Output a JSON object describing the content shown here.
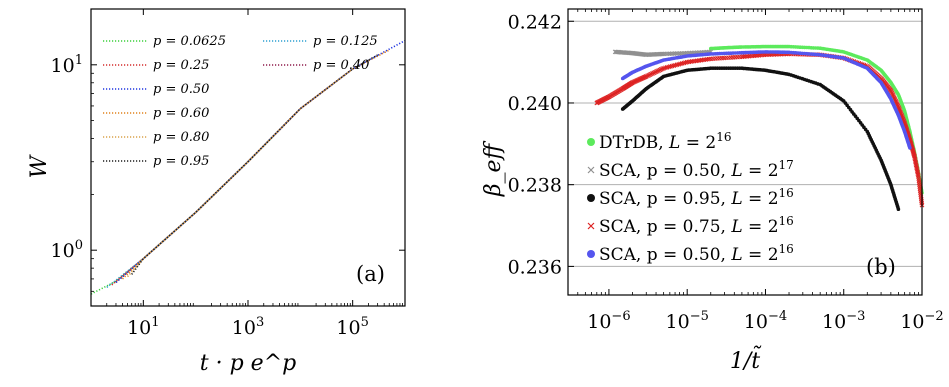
{
  "chart_data": [
    {
      "type": "line",
      "panel_label": "(a)",
      "xlabel": "t · p e^p",
      "ylabel": "W",
      "x_scale": "log",
      "y_scale": "log",
      "xlim": [
        1,
        1000000
      ],
      "ylim": [
        0.5,
        20
      ],
      "x_ticks": [
        {
          "value": 10,
          "base": "10",
          "exp": "1"
        },
        {
          "value": 1000,
          "base": "10",
          "exp": "3"
        },
        {
          "value": 100000,
          "base": "10",
          "exp": "5"
        }
      ],
      "y_ticks": [
        {
          "value": 1,
          "base": "10",
          "exp": "0"
        },
        {
          "value": 10,
          "base": "10",
          "exp": "1"
        }
      ],
      "grid": false,
      "legend_position": "top-left",
      "line_style": "dotted",
      "series": [
        {
          "name": "p = 0.0625",
          "color": "#3ccf3c",
          "x": [
            1,
            3,
            10,
            100,
            1000,
            3000
          ],
          "y": [
            0.58,
            0.68,
            0.9,
            1.6,
            3.0,
            4.1
          ]
        },
        {
          "name": "p = 0.125",
          "color": "#2c9fd0",
          "x": [
            2,
            10,
            100,
            1000,
            10000
          ],
          "y": [
            0.63,
            0.9,
            1.6,
            3.0,
            5.8
          ]
        },
        {
          "name": "p = 0.25",
          "color": "#d42b2b",
          "x": [
            2.5,
            10,
            100,
            1000,
            10000,
            40000
          ],
          "y": [
            0.65,
            0.9,
            1.6,
            3.0,
            5.8,
            7.8
          ]
        },
        {
          "name": "p = 0.40",
          "color": "#8e1a4a",
          "x": [
            3,
            10,
            100,
            1000,
            10000,
            100000
          ],
          "y": [
            0.67,
            0.9,
            1.6,
            3.0,
            5.8,
            9.5
          ]
        },
        {
          "name": "p = 0.50",
          "color": "#1f35e0",
          "x": [
            3,
            10,
            100,
            1000,
            10000,
            100000,
            1000000
          ],
          "y": [
            0.67,
            0.9,
            1.6,
            3.0,
            5.8,
            9.5,
            13.5
          ]
        },
        {
          "name": "p = 0.60",
          "color": "#e0821c",
          "x": [
            4,
            10,
            100,
            1000,
            10000,
            100000,
            500000
          ],
          "y": [
            0.7,
            0.9,
            1.6,
            3.0,
            5.8,
            9.5,
            12.0
          ]
        },
        {
          "name": "p = 0.80",
          "color": "#d9a24a",
          "x": [
            5,
            10,
            100,
            1000,
            10000,
            100000
          ],
          "y": [
            0.72,
            0.9,
            1.6,
            3.0,
            5.8,
            9.5
          ]
        },
        {
          "name": "p = 0.95",
          "color": "#1a1a1a",
          "x": [
            6,
            10,
            100,
            1000,
            10000,
            100000,
            300000
          ],
          "y": [
            0.74,
            0.9,
            1.6,
            3.0,
            5.8,
            9.5,
            11.3
          ]
        }
      ]
    },
    {
      "type": "scatter",
      "panel_label": "(b)",
      "xlabel": "1/t̃",
      "ylabel": "β_eff",
      "x_scale": "log",
      "y_scale": "linear",
      "xlim": [
        3e-07,
        0.01
      ],
      "ylim": [
        0.2353,
        0.2423
      ],
      "x_ticks": [
        {
          "value": 1e-06,
          "base": "10",
          "exp": "−6"
        },
        {
          "value": 1e-05,
          "base": "10",
          "exp": "−5"
        },
        {
          "value": 0.0001,
          "base": "10",
          "exp": "−4"
        },
        {
          "value": 0.001,
          "base": "10",
          "exp": "−3"
        },
        {
          "value": 0.01,
          "base": "10",
          "exp": "−2"
        }
      ],
      "y_ticks": [
        {
          "value": 0.236,
          "label": "0.236"
        },
        {
          "value": 0.238,
          "label": "0.238"
        },
        {
          "value": 0.24,
          "label": "0.240"
        },
        {
          "value": 0.242,
          "label": "0.242"
        }
      ],
      "grid": "horizontal",
      "legend_position": "bottom-left",
      "series": [
        {
          "name": "DTrDB, L = 2^16",
          "name_base": "DTrDB, ",
          "name_var": "L",
          "name_exp": "16",
          "marker": "circle",
          "color": "#5cea5c",
          "x": [
            2e-05,
            3e-05,
            5e-05,
            0.0001,
            0.0002,
            0.0005,
            0.001,
            0.002,
            0.003,
            0.004,
            0.005,
            0.006,
            0.007,
            0.008,
            0.009,
            0.01
          ],
          "y": [
            0.24133,
            0.24135,
            0.24137,
            0.24138,
            0.24138,
            0.24134,
            0.24125,
            0.24105,
            0.2408,
            0.2405,
            0.2402,
            0.2398,
            0.2393,
            0.2388,
            0.2383,
            0.2378
          ]
        },
        {
          "name": "SCA, p = 0.50, L = 2^17",
          "name_base": "SCA, p = 0.50, ",
          "name_var": "L",
          "name_exp": "17",
          "marker": "cross",
          "color": "#909090",
          "x": [
            1.2e-06,
            2e-06,
            3e-06,
            5e-06,
            1e-05,
            2e-05
          ],
          "y": [
            0.24125,
            0.24122,
            0.24118,
            0.2412,
            0.24122,
            0.24125
          ]
        },
        {
          "name": "SCA, p = 0.95, L = 2^16",
          "name_base": "SCA, p = 0.95, ",
          "name_var": "L",
          "name_exp": "16",
          "marker": "circle",
          "color": "#111111",
          "x": [
            1.5e-06,
            2e-06,
            3e-06,
            5e-06,
            1e-05,
            2e-05,
            5e-05,
            0.0001,
            0.0002,
            0.0005,
            0.001,
            0.002,
            0.003,
            0.004,
            0.005
          ],
          "y": [
            0.23985,
            0.24005,
            0.24035,
            0.24065,
            0.2408,
            0.24085,
            0.24085,
            0.2408,
            0.2407,
            0.24045,
            0.24005,
            0.2393,
            0.2386,
            0.238,
            0.2374
          ]
        },
        {
          "name": "SCA, p = 0.75, L = 2^16",
          "name_base": "SCA, p = 0.75, ",
          "name_var": "L",
          "name_exp": "16",
          "marker": "cross",
          "color": "#dd2222",
          "x": [
            7e-07,
            1e-06,
            1.5e-06,
            2e-06,
            3e-06,
            5e-06,
            1e-05,
            2e-05,
            5e-05,
            0.0001,
            0.0002,
            0.0005,
            0.001,
            0.002,
            0.003,
            0.004,
            0.005,
            0.006,
            0.007,
            0.008,
            0.009,
            0.01
          ],
          "y": [
            0.24,
            0.24015,
            0.24035,
            0.2405,
            0.24065,
            0.24085,
            0.241,
            0.24108,
            0.24113,
            0.24118,
            0.2412,
            0.24118,
            0.2411,
            0.2409,
            0.2406,
            0.2403,
            0.2399,
            0.2395,
            0.2391,
            0.2387,
            0.2382,
            0.2375
          ]
        },
        {
          "name": "SCA, p = 0.50, L = 2^16",
          "name_base": "SCA, p = 0.50, ",
          "name_var": "L",
          "name_exp": "16",
          "marker": "circle",
          "color": "#5555ee",
          "x": [
            1.5e-06,
            2e-06,
            3e-06,
            5e-06,
            1e-05,
            2e-05,
            5e-05,
            0.0001,
            0.0002,
            0.0005,
            0.001,
            0.002,
            0.003,
            0.004,
            0.005,
            0.006,
            0.007
          ],
          "y": [
            0.2406,
            0.24075,
            0.2409,
            0.24105,
            0.24115,
            0.2412,
            0.24123,
            0.24125,
            0.24124,
            0.24118,
            0.2411,
            0.24085,
            0.2405,
            0.2401,
            0.2397,
            0.2393,
            0.2389
          ]
        }
      ]
    }
  ]
}
